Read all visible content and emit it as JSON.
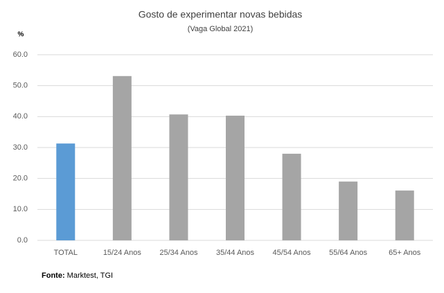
{
  "chart_data": {
    "type": "bar",
    "title": "Gosto de experimentar novas bebidas",
    "subtitle": "(Vaga Global 2021)",
    "y_label": "%",
    "categories": [
      "TOTAL",
      "15/24 Anos",
      "25/34 Anos",
      "35/44 Anos",
      "45/54 Anos",
      "55/64 Anos",
      "65+ Anos"
    ],
    "values": [
      31.3,
      53.1,
      40.7,
      40.3,
      28.0,
      19.0,
      16.1
    ],
    "colors": [
      "#5b9bd5",
      "#a5a5a5",
      "#a5a5a5",
      "#a5a5a5",
      "#a5a5a5",
      "#a5a5a5",
      "#a5a5a5"
    ],
    "ylim": [
      0,
      60
    ],
    "yticks": [
      {
        "value": 0,
        "label": "0.0"
      },
      {
        "value": 10,
        "label": "10.0"
      },
      {
        "value": 20,
        "label": "20.0"
      },
      {
        "value": 30,
        "label": "30.0"
      },
      {
        "value": 40,
        "label": "40.0"
      },
      {
        "value": 50,
        "label": "50.0"
      },
      {
        "value": 60,
        "label": "60.0"
      }
    ],
    "grid": true,
    "source_label": "Fonte:",
    "source": "Marktest, TGI"
  }
}
